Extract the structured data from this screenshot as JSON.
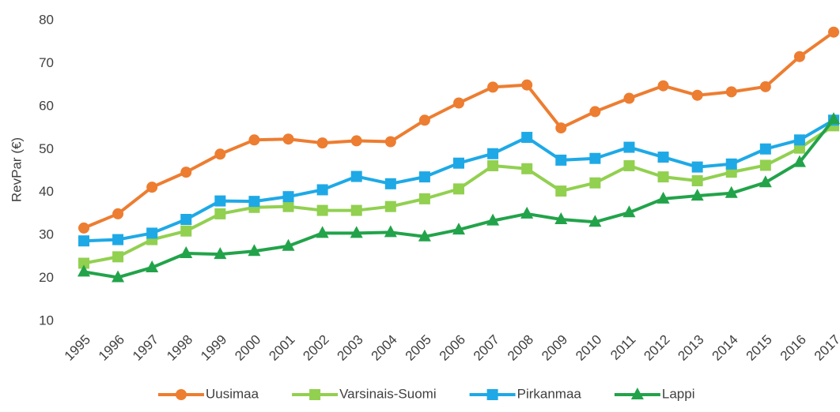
{
  "chart_data": {
    "type": "line",
    "y_label": "RevPar (€)",
    "categories": [
      "1995",
      "1996",
      "1997",
      "1998",
      "1999",
      "2000",
      "2001",
      "2002",
      "2003",
      "2004",
      "2005",
      "2006",
      "2007",
      "2008",
      "2009",
      "2010",
      "2011",
      "2012",
      "2013",
      "2014",
      "2015",
      "2016",
      "2017"
    ],
    "series": [
      {
        "name": "Uusimaa",
        "color": "#ed7d31",
        "marker": "circle",
        "values": [
          31.7,
          35,
          41.2,
          44.7,
          48.9,
          52.2,
          52.4,
          51.5,
          52,
          51.8,
          56.8,
          60.8,
          64.5,
          65,
          55,
          58.8,
          61.9,
          64.8,
          62.6,
          63.4,
          64.6,
          71.6,
          77.3
        ]
      },
      {
        "name": "Varsinais-Suomi",
        "color": "#92d050",
        "marker": "square",
        "values": [
          23.5,
          25,
          29,
          31,
          35,
          36.5,
          36.7,
          35.8,
          35.8,
          36.7,
          38.5,
          40.8,
          46.2,
          45.5,
          40.3,
          42.2,
          46.2,
          43.6,
          42.7,
          44.7,
          46.3,
          50.3,
          55.5
        ]
      },
      {
        "name": "Pirkanmaa",
        "color": "#1ea9e6",
        "marker": "square",
        "values": [
          28.7,
          29,
          30.5,
          33.7,
          38,
          37.9,
          39,
          40.6,
          43.7,
          42,
          43.6,
          46.8,
          49,
          52.8,
          47.5,
          47.9,
          50.5,
          48.2,
          45.9,
          46.6,
          50.1,
          52.2,
          56.8
        ]
      },
      {
        "name": "Lappi",
        "color": "#22a34a",
        "marker": "triangle",
        "values": [
          21.5,
          20.2,
          22.5,
          25.8,
          25.6,
          26.3,
          27.5,
          30.5,
          30.5,
          30.7,
          29.7,
          31.3,
          33.4,
          35,
          33.7,
          33.1,
          35.3,
          38.5,
          39.2,
          39.8,
          42.3,
          47,
          57
        ]
      }
    ],
    "ylim": [
      10,
      80
    ],
    "yticks": [
      10,
      20,
      30,
      40,
      50,
      60,
      70,
      80
    ],
    "grid": false,
    "legend": "bottom"
  }
}
